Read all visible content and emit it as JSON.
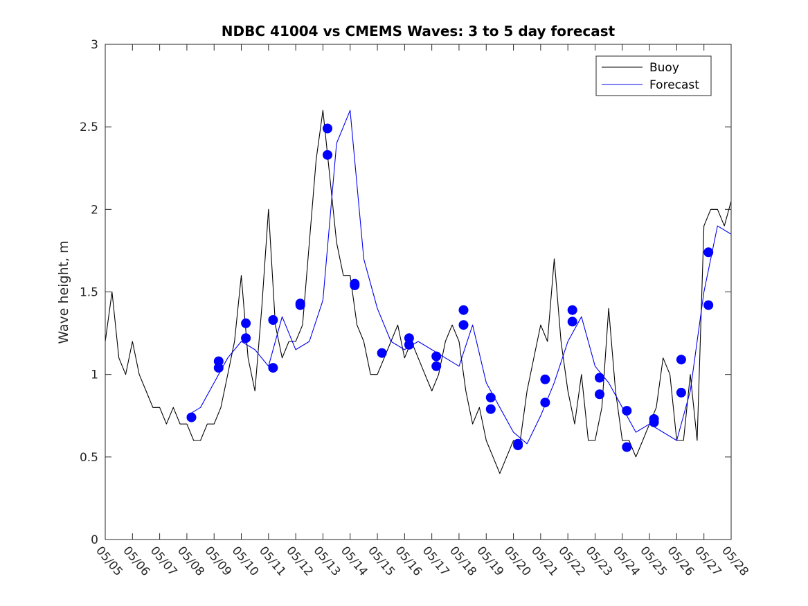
{
  "chart_data": {
    "type": "line",
    "title": "NDBC 41004 vs CMEMS Waves: 3 to 5 day forecast",
    "xlabel": "",
    "ylabel": "Wave height, m",
    "ylim": [
      0,
      3
    ],
    "yticks": [
      0,
      0.5,
      1,
      1.5,
      2,
      2.5,
      3
    ],
    "ytick_labels": [
      "0",
      "0.5",
      "1",
      "1.5",
      "2",
      "2.5",
      "3"
    ],
    "xlim": [
      "05/05",
      "05/28"
    ],
    "xticks": [
      "05/05",
      "05/06",
      "05/07",
      "05/08",
      "05/09",
      "05/10",
      "05/11",
      "05/12",
      "05/13",
      "05/14",
      "05/15",
      "05/16",
      "05/17",
      "05/18",
      "05/19",
      "05/20",
      "05/21",
      "05/22",
      "05/23",
      "05/24",
      "05/25",
      "05/26",
      "05/27",
      "05/28"
    ],
    "legend": {
      "placement": "top-right",
      "entries": [
        "Buoy",
        "Forecast"
      ]
    },
    "grid": false,
    "colors": {
      "buoy": "#000000",
      "forecast": "#0000ee",
      "markers": "#0000ff"
    },
    "series": [
      {
        "name": "Buoy",
        "x": [
          "05/05 00:00",
          "05/05 06:00",
          "05/05 12:00",
          "05/05 18:00",
          "05/06 00:00",
          "05/06 06:00",
          "05/06 12:00",
          "05/06 18:00",
          "05/07 00:00",
          "05/07 06:00",
          "05/07 12:00",
          "05/07 18:00",
          "05/08 00:00",
          "05/08 06:00",
          "05/08 12:00",
          "05/08 18:00",
          "05/09 00:00",
          "05/09 06:00",
          "05/09 12:00",
          "05/09 18:00",
          "05/10 00:00",
          "05/10 06:00",
          "05/10 12:00",
          "05/10 18:00",
          "05/11 00:00",
          "05/11 06:00",
          "05/11 12:00",
          "05/11 18:00",
          "05/12 00:00",
          "05/12 06:00",
          "05/12 12:00",
          "05/12 18:00",
          "05/13 00:00",
          "05/13 06:00",
          "05/13 12:00",
          "05/13 18:00",
          "05/14 00:00",
          "05/14 06:00",
          "05/14 12:00",
          "05/14 18:00",
          "05/15 00:00",
          "05/15 06:00",
          "05/15 12:00",
          "05/15 18:00",
          "05/16 00:00",
          "05/16 06:00",
          "05/16 12:00",
          "05/16 18:00",
          "05/17 00:00",
          "05/17 06:00",
          "05/17 12:00",
          "05/17 18:00",
          "05/18 00:00",
          "05/18 06:00",
          "05/18 12:00",
          "05/18 18:00",
          "05/19 00:00",
          "05/19 06:00",
          "05/19 12:00",
          "05/19 18:00",
          "05/20 00:00",
          "05/20 06:00",
          "05/20 12:00",
          "05/20 18:00",
          "05/21 00:00",
          "05/21 06:00",
          "05/21 12:00",
          "05/21 18:00",
          "05/22 00:00",
          "05/22 06:00",
          "05/22 12:00",
          "05/22 18:00",
          "05/23 00:00",
          "05/23 06:00",
          "05/23 12:00",
          "05/23 18:00",
          "05/24 00:00",
          "05/24 06:00",
          "05/24 12:00",
          "05/24 18:00",
          "05/25 00:00",
          "05/25 06:00",
          "05/25 12:00",
          "05/25 18:00",
          "05/26 00:00",
          "05/26 06:00",
          "05/26 12:00",
          "05/26 18:00",
          "05/27 00:00",
          "05/27 06:00",
          "05/27 12:00",
          "05/27 18:00",
          "05/28 00:00"
        ],
        "y": [
          1.2,
          1.5,
          1.1,
          1.0,
          1.2,
          1.0,
          0.9,
          0.8,
          0.8,
          0.7,
          0.8,
          0.7,
          0.7,
          0.6,
          0.6,
          0.7,
          0.7,
          0.8,
          1.0,
          1.2,
          1.6,
          1.1,
          0.9,
          1.4,
          2.0,
          1.3,
          1.1,
          1.2,
          1.2,
          1.3,
          1.8,
          2.3,
          2.6,
          2.2,
          1.8,
          1.6,
          1.6,
          1.3,
          1.2,
          1.0,
          1.0,
          1.1,
          1.2,
          1.3,
          1.1,
          1.2,
          1.1,
          1.0,
          0.9,
          1.0,
          1.2,
          1.3,
          1.2,
          0.9,
          0.7,
          0.8,
          0.6,
          0.5,
          0.4,
          0.5,
          0.6,
          0.6,
          0.9,
          1.1,
          1.3,
          1.2,
          1.7,
          1.2,
          0.9,
          0.7,
          1.0,
          0.6,
          0.6,
          0.8,
          1.4,
          0.9,
          0.6,
          0.6,
          0.5,
          0.6,
          0.7,
          0.8,
          1.1,
          1.0,
          0.6,
          0.6,
          1.0,
          0.6,
          1.9,
          2.0,
          2.0,
          1.9,
          2.05
        ]
      },
      {
        "name": "Forecast",
        "x": [
          "05/08 00:00",
          "05/08 12:00",
          "05/09 00:00",
          "05/09 12:00",
          "05/10 00:00",
          "05/10 12:00",
          "05/11 00:00",
          "05/11 12:00",
          "05/12 00:00",
          "05/12 12:00",
          "05/13 00:00",
          "05/13 12:00",
          "05/14 00:00",
          "05/14 12:00",
          "05/15 00:00",
          "05/15 12:00",
          "05/16 00:00",
          "05/16 12:00",
          "05/17 00:00",
          "05/17 12:00",
          "05/18 00:00",
          "05/18 12:00",
          "05/19 00:00",
          "05/19 12:00",
          "05/20 00:00",
          "05/20 12:00",
          "05/21 00:00",
          "05/21 12:00",
          "05/22 00:00",
          "05/22 12:00",
          "05/23 00:00",
          "05/23 12:00",
          "05/24 00:00",
          "05/24 12:00",
          "05/25 00:00",
          "05/25 12:00",
          "05/26 00:00",
          "05/26 12:00",
          "05/27 00:00",
          "05/27 12:00",
          "05/28 00:00"
        ],
        "y": [
          0.75,
          0.8,
          0.95,
          1.1,
          1.2,
          1.15,
          1.05,
          1.35,
          1.15,
          1.2,
          1.45,
          2.4,
          2.6,
          1.7,
          1.4,
          1.2,
          1.15,
          1.2,
          1.15,
          1.1,
          1.05,
          1.3,
          0.95,
          0.8,
          0.65,
          0.58,
          0.75,
          0.95,
          1.2,
          1.35,
          1.05,
          0.95,
          0.8,
          0.65,
          0.7,
          0.65,
          0.6,
          0.9,
          1.5,
          1.9,
          1.85
        ]
      }
    ],
    "markers": [
      {
        "x": "05/08 04:00",
        "y": 0.74
      },
      {
        "x": "05/09 04:00",
        "y": 1.08
      },
      {
        "x": "05/09 04:00",
        "y": 1.04
      },
      {
        "x": "05/10 04:00",
        "y": 1.31
      },
      {
        "x": "05/10 04:00",
        "y": 1.22
      },
      {
        "x": "05/11 04:00",
        "y": 1.33
      },
      {
        "x": "05/11 04:00",
        "y": 1.04
      },
      {
        "x": "05/12 04:00",
        "y": 1.43
      },
      {
        "x": "05/12 04:00",
        "y": 1.42
      },
      {
        "x": "05/13 04:00",
        "y": 2.49
      },
      {
        "x": "05/13 04:00",
        "y": 2.33
      },
      {
        "x": "05/14 04:00",
        "y": 1.55
      },
      {
        "x": "05/14 04:00",
        "y": 1.54
      },
      {
        "x": "05/15 04:00",
        "y": 1.13
      },
      {
        "x": "05/16 04:00",
        "y": 1.22
      },
      {
        "x": "05/16 04:00",
        "y": 1.18
      },
      {
        "x": "05/17 04:00",
        "y": 1.11
      },
      {
        "x": "05/17 04:00",
        "y": 1.05
      },
      {
        "x": "05/18 04:00",
        "y": 1.39
      },
      {
        "x": "05/18 04:00",
        "y": 1.3
      },
      {
        "x": "05/19 04:00",
        "y": 0.86
      },
      {
        "x": "05/19 04:00",
        "y": 0.79
      },
      {
        "x": "05/20 04:00",
        "y": 0.58
      },
      {
        "x": "05/20 04:00",
        "y": 0.57
      },
      {
        "x": "05/21 04:00",
        "y": 0.97
      },
      {
        "x": "05/21 04:00",
        "y": 0.83
      },
      {
        "x": "05/22 04:00",
        "y": 1.39
      },
      {
        "x": "05/22 04:00",
        "y": 1.32
      },
      {
        "x": "05/23 04:00",
        "y": 0.98
      },
      {
        "x": "05/23 04:00",
        "y": 0.88
      },
      {
        "x": "05/24 04:00",
        "y": 0.78
      },
      {
        "x": "05/24 04:00",
        "y": 0.56
      },
      {
        "x": "05/25 04:00",
        "y": 0.73
      },
      {
        "x": "05/25 04:00",
        "y": 0.71
      },
      {
        "x": "05/26 04:00",
        "y": 1.09
      },
      {
        "x": "05/26 04:00",
        "y": 0.89
      },
      {
        "x": "05/27 04:00",
        "y": 1.74
      },
      {
        "x": "05/27 04:00",
        "y": 1.42
      }
    ]
  }
}
